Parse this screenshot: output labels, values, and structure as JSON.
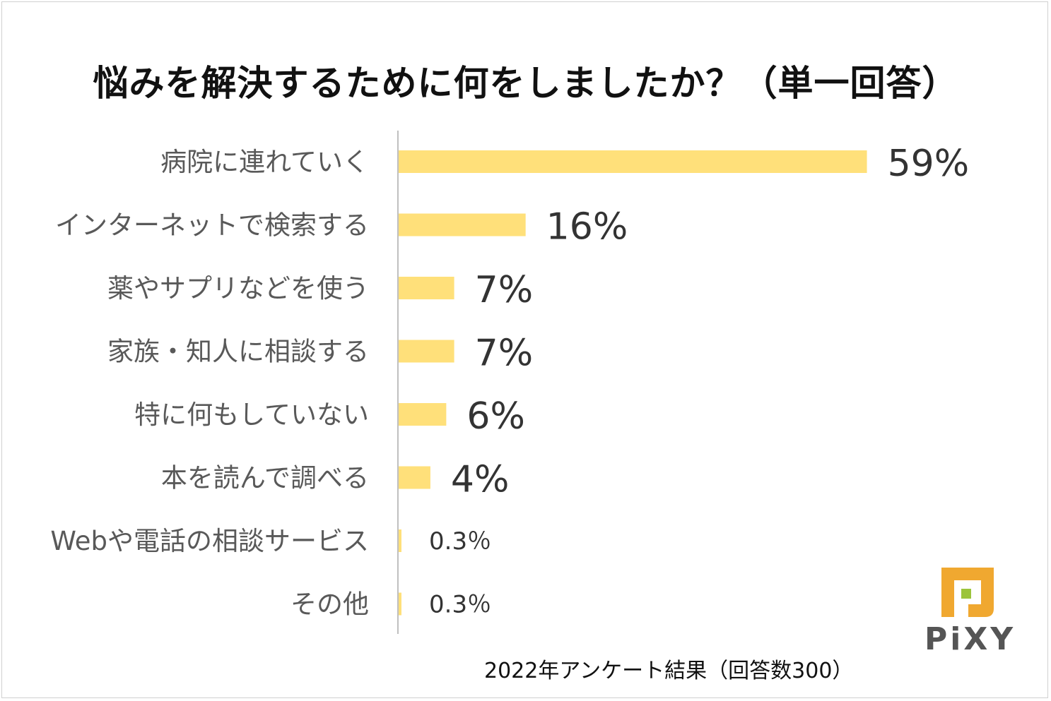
{
  "chart_data": {
    "type": "bar",
    "orientation": "horizontal",
    "title": "悩みを解決するために何をしましたか？（単一回答）",
    "categories": [
      "病院に連れていく",
      "インターネットで検索する",
      "薬やサプリなどを使う",
      "家族・知人に相談する",
      "特に何もしていない",
      "本を読んで調べる",
      "Webや電話の相談サービス",
      "その他"
    ],
    "values": [
      59,
      16,
      7,
      7,
      6,
      4,
      0.3,
      0.3
    ],
    "value_labels": [
      "59%",
      "16%",
      "7%",
      "7%",
      "6%",
      "4%",
      "0.3％",
      "0.3％"
    ],
    "unit": "%",
    "xlim": [
      0,
      100
    ],
    "grid": false,
    "bar_color": "#ffe07a"
  },
  "footnote": "2022年アンケート結果（回答数300）",
  "logo": {
    "text": "PiXY",
    "colors": {
      "orange": "#f0a830",
      "green": "#9cc43c"
    }
  }
}
